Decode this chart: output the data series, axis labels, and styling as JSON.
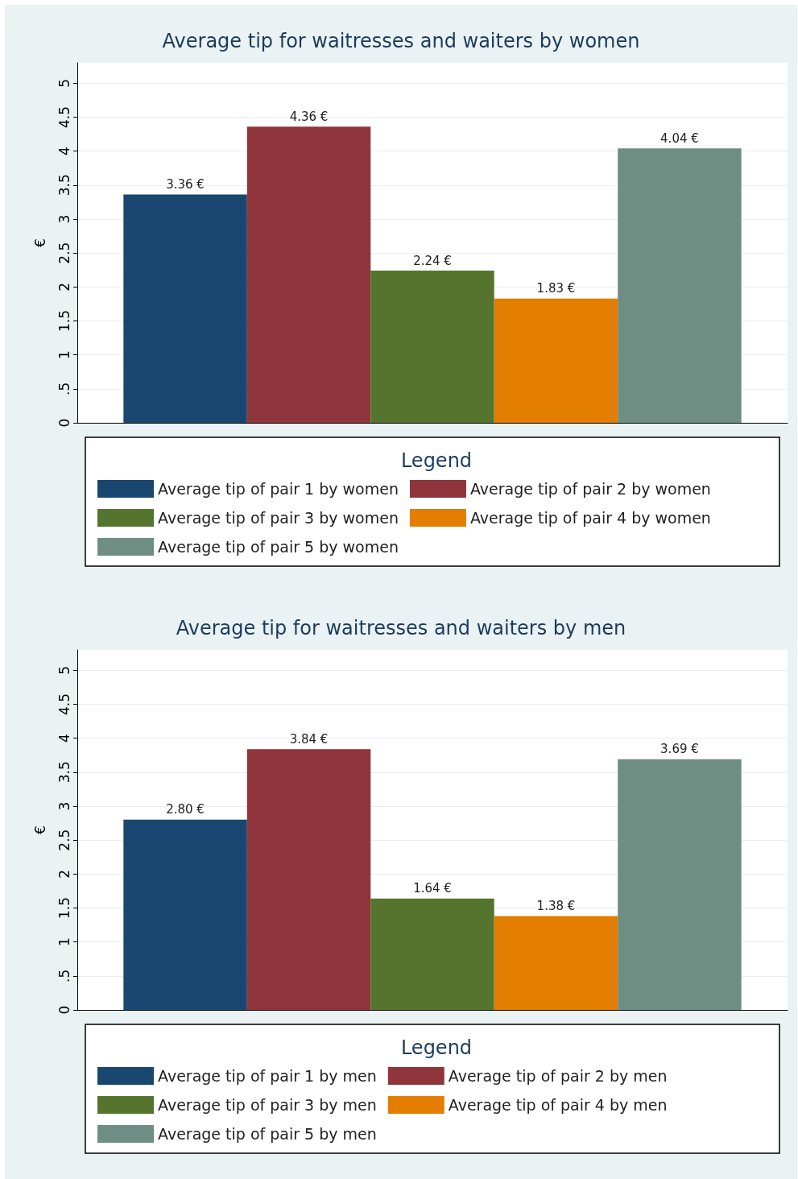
{
  "chart_data": [
    {
      "type": "bar",
      "title": "Average tip for waitresses and waiters by women",
      "ylabel": "€",
      "legend_title": "Legend",
      "categories": [
        null
      ],
      "series": [
        {
          "name": "Average tip of pair 1 by women",
          "color": "#1a476f",
          "values": [
            3.36
          ],
          "value_labels": [
            "3.36 €"
          ]
        },
        {
          "name": "Average tip of pair 2 by women",
          "color": "#90353b",
          "values": [
            4.36
          ],
          "value_labels": [
            "4.36 €"
          ]
        },
        {
          "name": "Average tip of pair 3 by women",
          "color": "#55752f",
          "values": [
            2.24
          ],
          "value_labels": [
            "2.24 €"
          ]
        },
        {
          "name": "Average tip of pair 4 by women",
          "color": "#e37e00",
          "values": [
            1.83
          ],
          "value_labels": [
            "1.83 €"
          ]
        },
        {
          "name": "Average tip of pair 5 by women",
          "color": "#6e8e84",
          "values": [
            4.04
          ],
          "value_labels": [
            "4.04 €"
          ]
        }
      ],
      "ylim": [
        0,
        5.3
      ],
      "yticks": [
        0,
        {
          "value": 0.5,
          "label": ".5"
        },
        1,
        1.5,
        2,
        2.5,
        3,
        3.5,
        4,
        4.5,
        5
      ],
      "grid": "y",
      "legend": "bottom"
    },
    {
      "type": "bar",
      "title": "Average tip for waitresses and waiters by men",
      "ylabel": "€",
      "legend_title": "Legend",
      "categories": [
        null
      ],
      "series": [
        {
          "name": "Average tip of pair 1 by men",
          "color": "#1a476f",
          "values": [
            2.8
          ],
          "value_labels": [
            "2.80 €"
          ]
        },
        {
          "name": "Average tip of pair 2 by men",
          "color": "#90353b",
          "values": [
            3.84
          ],
          "value_labels": [
            "3.84 €"
          ]
        },
        {
          "name": "Average tip of pair 3 by men",
          "color": "#55752f",
          "values": [
            1.64
          ],
          "value_labels": [
            "1.64 €"
          ]
        },
        {
          "name": "Average tip of pair 4 by men",
          "color": "#e37e00",
          "values": [
            1.38
          ],
          "value_labels": [
            "1.38 €"
          ]
        },
        {
          "name": "Average tip of pair 5 by men",
          "color": "#6e8e84",
          "values": [
            3.69
          ],
          "value_labels": [
            "3.69 €"
          ]
        }
      ],
      "ylim": [
        0,
        5.3
      ],
      "yticks": [
        0,
        {
          "value": 0.5,
          "label": ".5"
        },
        1,
        1.5,
        2,
        2.5,
        3,
        3.5,
        4,
        4.5,
        5
      ],
      "grid": "y",
      "legend": "bottom"
    }
  ]
}
